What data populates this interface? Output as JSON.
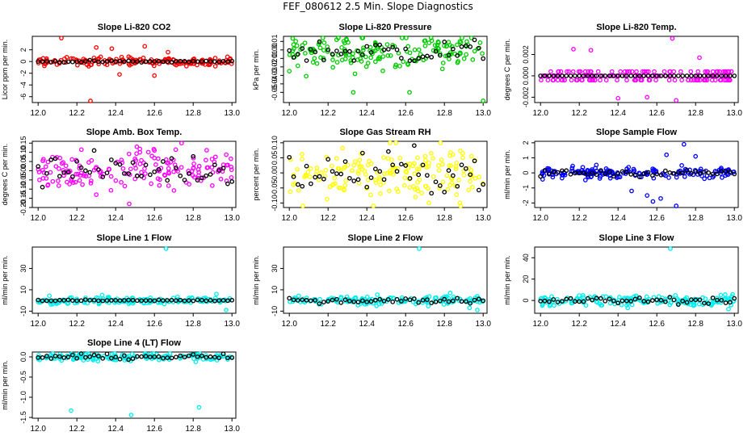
{
  "figure": {
    "title": "FEF_080612  2.5 Min. Slope Diagnostics"
  },
  "chart_data": [
    {
      "type": "scatter",
      "title": "Slope Li-820 CO2",
      "xlabel": "",
      "ylabel": "Licor ppm per min.",
      "color": "#ff0000",
      "xlim": [
        11.97,
        13.02
      ],
      "ylim": [
        -7.0,
        4.3
      ],
      "xticks": [
        "12.0",
        "12.2",
        "12.4",
        "12.6",
        "12.8",
        "13.0"
      ],
      "xtick_values": [
        12.0,
        12.2,
        12.4,
        12.6,
        12.8,
        13.0
      ],
      "yticks": [
        "-6",
        "-4",
        "-2",
        "0",
        "2"
      ],
      "ytick_values": [
        -6,
        -4,
        -2,
        0,
        2
      ],
      "base": 0.0,
      "noise_black": 0.08,
      "noise_color": 0.35,
      "outliers": [
        [
          12.12,
          4.0
        ],
        [
          12.27,
          -6.9
        ],
        [
          12.3,
          2.4
        ],
        [
          12.38,
          2.2
        ],
        [
          12.42,
          -2.2
        ],
        [
          12.55,
          2.6
        ],
        [
          12.6,
          -2.4
        ],
        [
          12.67,
          1.6
        ]
      ],
      "grid": false,
      "legend": "none"
    },
    {
      "type": "scatter",
      "title": "Slope Li-820 Pressure",
      "xlabel": "",
      "ylabel": "kPa per min.",
      "color": "#00cc00",
      "xlim": [
        11.97,
        13.02
      ],
      "ylim": [
        -0.062,
        0.016
      ],
      "xticks": [
        "12.0",
        "12.2",
        "12.4",
        "12.6",
        "12.8",
        "13.0"
      ],
      "xtick_values": [
        12.0,
        12.2,
        12.4,
        12.6,
        12.8,
        13.0
      ],
      "yticks": [
        "-0.05",
        "-0.04",
        "-0.03",
        "-0.02",
        "-0.01",
        "0.00",
        "0.01"
      ],
      "ytick_values": [
        -0.05,
        -0.04,
        -0.03,
        -0.02,
        -0.01,
        0.0,
        0.01
      ],
      "base": -0.002,
      "noise_black": 0.007,
      "noise_color": 0.01,
      "outliers": [
        [
          12.33,
          -0.05
        ],
        [
          12.62,
          -0.05
        ],
        [
          13.0,
          -0.06
        ],
        [
          12.0,
          -0.025
        ],
        [
          12.88,
          0.01
        ]
      ],
      "grid": false,
      "legend": "none"
    },
    {
      "type": "scatter",
      "title": "Slope Li-820 Temp.",
      "xlabel": "",
      "ylabel": "degrees C per min.",
      "color": "#ff00ff",
      "xlim": [
        11.97,
        13.02
      ],
      "ylim": [
        -0.0025,
        0.0037
      ],
      "xticks": [
        "12.0",
        "12.2",
        "12.4",
        "12.6",
        "12.8",
        "13.0"
      ],
      "xtick_values": [
        12.0,
        12.2,
        12.4,
        12.6,
        12.8,
        13.0
      ],
      "yticks": [
        "-0.002",
        "0.000",
        "0.002"
      ],
      "ytick_values": [
        -0.002,
        0.0,
        0.002
      ],
      "base": 0.0,
      "noise_black": 0.0,
      "noise_color": 0.0008,
      "outliers": [
        [
          12.17,
          0.0025
        ],
        [
          12.26,
          0.0024
        ],
        [
          12.68,
          0.0035
        ],
        [
          12.82,
          0.0017
        ],
        [
          12.4,
          -0.0021
        ],
        [
          12.55,
          -0.002
        ],
        [
          12.7,
          -0.0023
        ]
      ],
      "grid": false,
      "legend": "none"
    },
    {
      "type": "scatter",
      "title": "Slope Amb. Box Temp.",
      "xlabel": "",
      "ylabel": "degrees C per min.",
      "color": "#ff00ff",
      "xlim": [
        11.97,
        13.02
      ],
      "ylim": [
        -0.2,
        0.16
      ],
      "xticks": [
        "12.0",
        "12.2",
        "12.4",
        "12.6",
        "12.8",
        "13.0"
      ],
      "xtick_values": [
        12.0,
        12.2,
        12.4,
        12.6,
        12.8,
        13.0
      ],
      "yticks": [
        "-0.20",
        "-0.15",
        "-0.10",
        "-0.05",
        "0.00",
        "0.05",
        "0.10",
        "0.15"
      ],
      "ytick_values": [
        -0.2,
        -0.15,
        -0.1,
        -0.05,
        0.0,
        0.05,
        0.1,
        0.15
      ],
      "base": 0.005,
      "noise_black": 0.04,
      "noise_color": 0.05,
      "outliers": [
        [
          12.47,
          -0.18
        ],
        [
          12.74,
          0.15
        ],
        [
          12.3,
          -0.13
        ],
        [
          12.6,
          0.11
        ]
      ],
      "grid": false,
      "legend": "none"
    },
    {
      "type": "scatter",
      "title": "Slope Gas Stream RH",
      "xlabel": "",
      "ylabel": "percent per min.",
      "color": "#ffff00",
      "xlim": [
        11.97,
        13.02
      ],
      "ylim": [
        -0.115,
        0.105
      ],
      "xticks": [
        "12.0",
        "12.2",
        "12.4",
        "12.6",
        "12.8",
        "13.0"
      ],
      "xtick_values": [
        12.0,
        12.2,
        12.4,
        12.6,
        12.8,
        13.0
      ],
      "yticks": [
        "-0.10",
        "-0.05",
        "0.00",
        "0.05",
        "0.10"
      ],
      "ytick_values": [
        -0.1,
        -0.05,
        0.0,
        0.05,
        0.1
      ],
      "base": 0.0,
      "noise_black": 0.035,
      "noise_color": 0.045,
      "outliers": [
        [
          12.07,
          -0.11
        ],
        [
          12.55,
          0.1
        ],
        [
          12.78,
          0.1
        ],
        [
          12.88,
          -0.1
        ],
        [
          12.72,
          -0.1
        ]
      ],
      "grid": false,
      "legend": "none"
    },
    {
      "type": "scatter",
      "title": "Slope Sample Flow",
      "xlabel": "",
      "ylabel": "ml/min per min.",
      "color": "#0000ff",
      "xlim": [
        11.97,
        13.02
      ],
      "ylim": [
        -2.3,
        2.1
      ],
      "xticks": [
        "12.0",
        "12.2",
        "12.4",
        "12.6",
        "12.8",
        "13.0"
      ],
      "xtick_values": [
        12.0,
        12.2,
        12.4,
        12.6,
        12.8,
        13.0
      ],
      "yticks": [
        "-2",
        "-1",
        "0",
        "1",
        "2"
      ],
      "ytick_values": [
        -2,
        -1,
        0,
        1,
        2
      ],
      "base": 0.0,
      "noise_black": 0.12,
      "noise_color": 0.18,
      "outliers": [
        [
          12.58,
          -1.9
        ],
        [
          12.62,
          -1.7
        ],
        [
          12.7,
          -2.2
        ],
        [
          12.74,
          1.9
        ],
        [
          12.55,
          -1.5
        ],
        [
          12.65,
          1.2
        ],
        [
          12.8,
          1.1
        ],
        [
          12.47,
          -1.2
        ]
      ],
      "grid": false,
      "legend": "none"
    },
    {
      "type": "scatter",
      "title": "Slope Line 1 Flow",
      "xlabel": "",
      "ylabel": "ml/min per min.",
      "color": "#00eeee",
      "xlim": [
        11.97,
        13.02
      ],
      "ylim": [
        -12,
        50
      ],
      "xticks": [
        "12.0",
        "12.2",
        "12.4",
        "12.6",
        "12.8",
        "13.0"
      ],
      "xtick_values": [
        12.0,
        12.2,
        12.4,
        12.6,
        12.8,
        13.0
      ],
      "yticks": [
        "-10",
        "10",
        "30"
      ],
      "ytick_values": [
        -10,
        10,
        30
      ],
      "base": 0.0,
      "noise_black": 0.4,
      "noise_color": 1.5,
      "outliers": [
        [
          12.66,
          49
        ],
        [
          12.97,
          -9
        ],
        [
          12.33,
          5
        ],
        [
          12.92,
          6
        ]
      ],
      "grid": false,
      "legend": "none"
    },
    {
      "type": "scatter",
      "title": "Slope Line 2 Flow",
      "xlabel": "",
      "ylabel": "ml/min per min.",
      "color": "#00eeee",
      "xlim": [
        11.97,
        13.02
      ],
      "ylim": [
        -12,
        50
      ],
      "xticks": [
        "12.0",
        "12.2",
        "12.4",
        "12.6",
        "12.8",
        "13.0"
      ],
      "xtick_values": [
        12.0,
        12.2,
        12.4,
        12.6,
        12.8,
        13.0
      ],
      "yticks": [
        "-10",
        "10",
        "30"
      ],
      "ytick_values": [
        -10,
        10,
        30
      ],
      "base": 0.0,
      "noise_black": 1.2,
      "noise_color": 2.0,
      "outliers": [
        [
          12.67,
          49
        ],
        [
          12.97,
          -9
        ],
        [
          12.83,
          7
        ],
        [
          12.45,
          -5
        ],
        [
          12.93,
          -7
        ]
      ],
      "grid": false,
      "legend": "none"
    },
    {
      "type": "scatter",
      "title": "Slope Line 3 Flow",
      "xlabel": "",
      "ylabel": "ml/min per min.",
      "color": "#00eeee",
      "xlim": [
        11.97,
        13.02
      ],
      "ylim": [
        -12,
        50
      ],
      "xticks": [
        "12.0",
        "12.2",
        "12.4",
        "12.6",
        "12.8",
        "13.0"
      ],
      "xtick_values": [
        12.0,
        12.2,
        12.4,
        12.6,
        12.8,
        13.0
      ],
      "yticks": [
        "0",
        "20",
        "40"
      ],
      "ytick_values": [
        0,
        20,
        40
      ],
      "base": 0.0,
      "noise_black": 1.5,
      "noise_color": 2.5,
      "outliers": [
        [
          12.67,
          49
        ],
        [
          12.45,
          -7
        ],
        [
          12.97,
          -8
        ],
        [
          12.93,
          5
        ]
      ],
      "grid": false,
      "legend": "none"
    },
    {
      "type": "scatter",
      "title": "Slope Line 4 (LT) Flow",
      "xlabel": "",
      "ylabel": "ml/min per min.",
      "color": "#00eeee",
      "xlim": [
        11.97,
        13.02
      ],
      "ylim": [
        -1.52,
        0.12
      ],
      "xticks": [
        "12.0",
        "12.2",
        "12.4",
        "12.6",
        "12.8",
        "13.0"
      ],
      "xtick_values": [
        12.0,
        12.2,
        12.4,
        12.6,
        12.8,
        13.0
      ],
      "yticks": [
        "-1.5",
        "-1.0",
        "-0.5",
        "0.0"
      ],
      "ytick_values": [
        -1.5,
        -1.0,
        -0.5,
        0.0
      ],
      "base": 0.0,
      "noise_black": 0.03,
      "noise_color": 0.05,
      "outliers": [
        [
          12.17,
          -1.33
        ],
        [
          12.48,
          -1.44
        ],
        [
          12.83,
          -1.25
        ]
      ],
      "grid": false,
      "legend": "none"
    }
  ]
}
